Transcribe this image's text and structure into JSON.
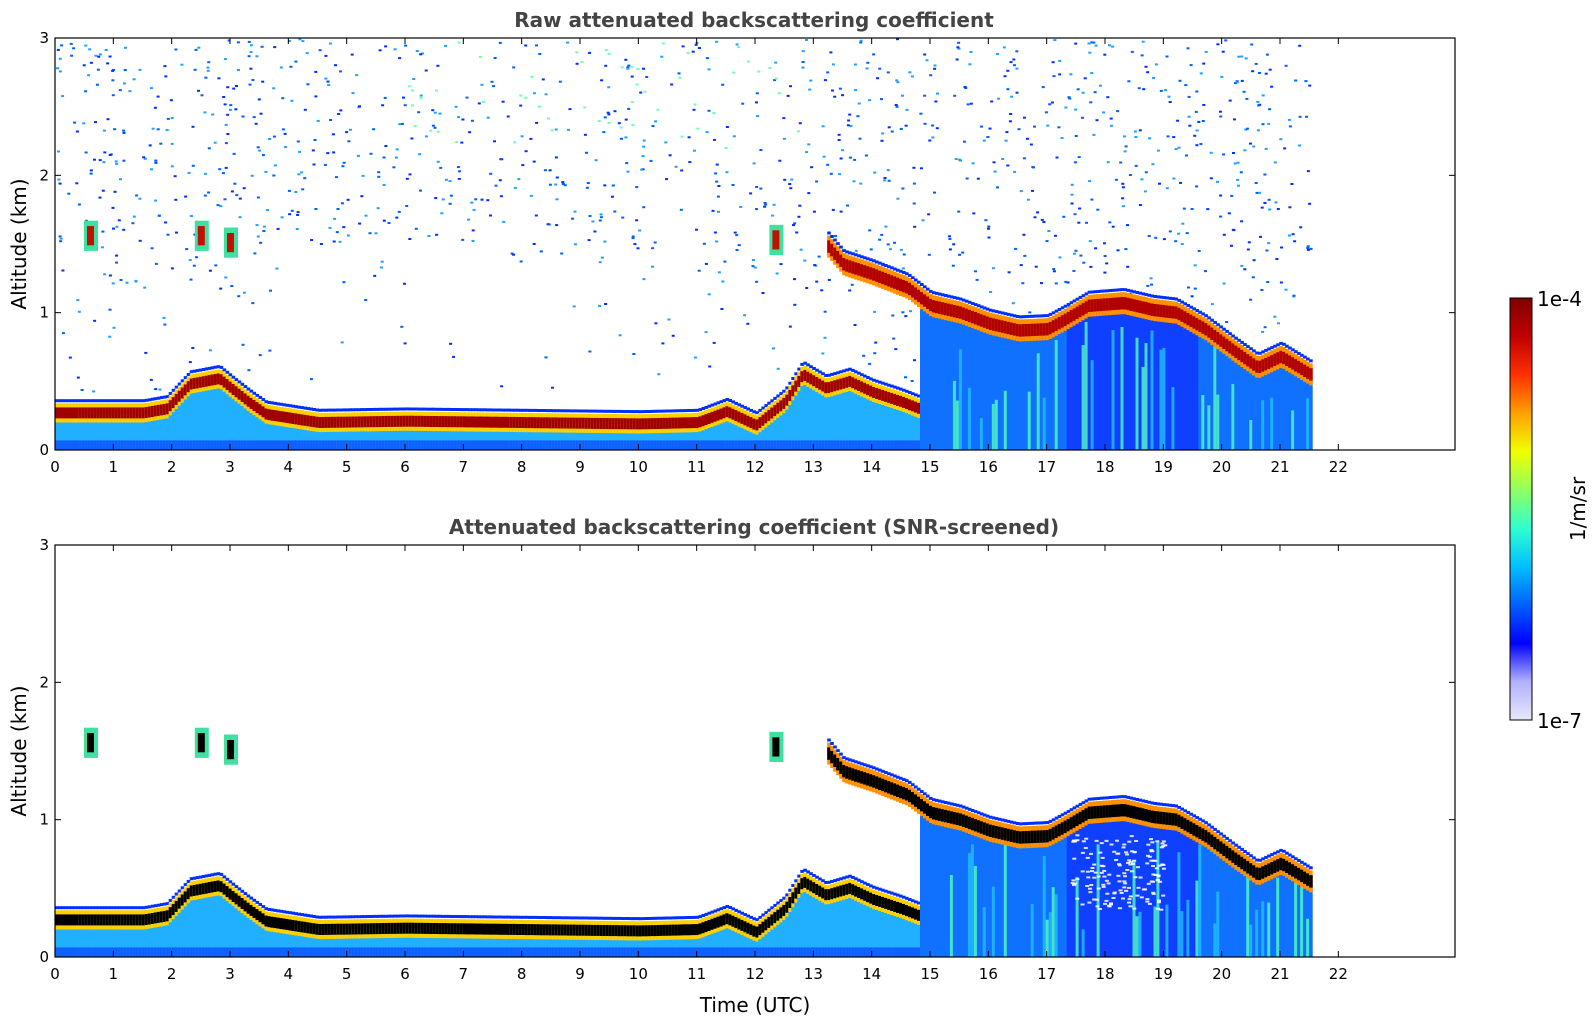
{
  "chart_data": [
    {
      "type": "heatmap",
      "title": "Raw attenuated backscattering coefficient",
      "xlabel": "",
      "ylabel": "Altitude (km)",
      "xlim": [
        0,
        24
      ],
      "ylim": [
        0,
        3
      ],
      "xticks": [
        "0",
        "1",
        "2",
        "3",
        "4",
        "5",
        "6",
        "7",
        "8",
        "9",
        "10",
        "11",
        "12",
        "13",
        "14",
        "15",
        "16",
        "17",
        "18",
        "19",
        "20",
        "21",
        "22"
      ],
      "yticks": [
        "0",
        "1",
        "2",
        "3"
      ],
      "data_end_time": 21.55,
      "noise_level": 0.55,
      "screened": false,
      "layers": [
        {
          "name": "boundary layer",
          "points": [
            [
              0,
              0.27
            ],
            [
              1.5,
              0.27
            ],
            [
              1.9,
              0.3
            ],
            [
              2.3,
              0.48
            ],
            [
              2.8,
              0.52
            ],
            [
              3.0,
              0.45
            ],
            [
              3.3,
              0.35
            ],
            [
              3.6,
              0.26
            ],
            [
              4.5,
              0.2
            ],
            [
              6,
              0.21
            ],
            [
              8,
              0.2
            ],
            [
              10,
              0.19
            ],
            [
              11,
              0.2
            ],
            [
              11.5,
              0.28
            ],
            [
              12,
              0.18
            ],
            [
              12.5,
              0.35
            ],
            [
              12.8,
              0.55
            ],
            [
              13.2,
              0.45
            ],
            [
              13.6,
              0.5
            ],
            [
              14,
              0.42
            ],
            [
              14.5,
              0.35
            ],
            [
              14.8,
              0.3
            ]
          ]
        },
        {
          "name": "elevated layer",
          "points": [
            [
              13.2,
              1.5
            ],
            [
              13.5,
              1.35
            ],
            [
              14,
              1.28
            ],
            [
              14.6,
              1.18
            ],
            [
              15,
              1.05
            ],
            [
              15.5,
              1.0
            ],
            [
              16,
              0.92
            ],
            [
              16.5,
              0.87
            ],
            [
              17,
              0.88
            ],
            [
              17.3,
              0.95
            ],
            [
              17.7,
              1.05
            ],
            [
              18.3,
              1.07
            ],
            [
              18.8,
              1.02
            ],
            [
              19.2,
              1.0
            ],
            [
              19.7,
              0.88
            ],
            [
              20.2,
              0.72
            ],
            [
              20.6,
              0.6
            ],
            [
              21,
              0.68
            ],
            [
              21.5,
              0.55
            ]
          ]
        }
      ],
      "clouds": [
        [
          0.6,
          1.55
        ],
        [
          2.5,
          1.55
        ],
        [
          3.0,
          1.5
        ],
        [
          12.35,
          1.52
        ]
      ]
    },
    {
      "type": "heatmap",
      "title": "Attenuated backscattering coefficient (SNR-screened)",
      "xlabel": "Time (UTC)",
      "ylabel": "Altitude (km)",
      "xlim": [
        0,
        24
      ],
      "ylim": [
        0,
        3
      ],
      "xticks": [
        "0",
        "1",
        "2",
        "3",
        "4",
        "5",
        "6",
        "7",
        "8",
        "9",
        "10",
        "11",
        "12",
        "13",
        "14",
        "15",
        "16",
        "17",
        "18",
        "19",
        "20",
        "21",
        "22"
      ],
      "yticks": [
        "0",
        "1",
        "2",
        "3"
      ],
      "data_end_time": 21.55,
      "noise_level": 0.0,
      "screened": true,
      "layers": [
        {
          "name": "boundary layer",
          "points": [
            [
              0,
              0.27
            ],
            [
              1.5,
              0.27
            ],
            [
              1.9,
              0.3
            ],
            [
              2.3,
              0.48
            ],
            [
              2.8,
              0.52
            ],
            [
              3.0,
              0.45
            ],
            [
              3.3,
              0.35
            ],
            [
              3.6,
              0.26
            ],
            [
              4.5,
              0.2
            ],
            [
              6,
              0.21
            ],
            [
              8,
              0.2
            ],
            [
              10,
              0.19
            ],
            [
              11,
              0.2
            ],
            [
              11.5,
              0.28
            ],
            [
              12,
              0.18
            ],
            [
              12.5,
              0.35
            ],
            [
              12.8,
              0.55
            ],
            [
              13.2,
              0.45
            ],
            [
              13.6,
              0.5
            ],
            [
              14,
              0.42
            ],
            [
              14.5,
              0.35
            ],
            [
              14.8,
              0.3
            ]
          ]
        },
        {
          "name": "elevated layer",
          "points": [
            [
              13.2,
              1.5
            ],
            [
              13.5,
              1.35
            ],
            [
              14,
              1.28
            ],
            [
              14.6,
              1.18
            ],
            [
              15,
              1.05
            ],
            [
              15.5,
              1.0
            ],
            [
              16,
              0.92
            ],
            [
              16.5,
              0.87
            ],
            [
              17,
              0.88
            ],
            [
              17.3,
              0.95
            ],
            [
              17.7,
              1.05
            ],
            [
              18.3,
              1.07
            ],
            [
              18.8,
              1.02
            ],
            [
              19.2,
              1.0
            ],
            [
              19.7,
              0.88
            ],
            [
              20.2,
              0.72
            ],
            [
              20.6,
              0.6
            ],
            [
              21,
              0.68
            ],
            [
              21.5,
              0.55
            ]
          ]
        }
      ],
      "clouds": [
        [
          0.6,
          1.55
        ],
        [
          2.5,
          1.55
        ],
        [
          3.0,
          1.5
        ],
        [
          12.35,
          1.52
        ]
      ]
    }
  ],
  "colorbar": {
    "max_label": "1e-4",
    "min_label": "1e-7",
    "unit_label": "1/m/sr",
    "colors": [
      "#e8e8f8",
      "#b0b0ff",
      "#0000ff",
      "#0060ff",
      "#00c0ff",
      "#30ffd0",
      "#90ff60",
      "#f0ff00",
      "#ffa000",
      "#ff3000",
      "#c00000",
      "#800000"
    ]
  }
}
